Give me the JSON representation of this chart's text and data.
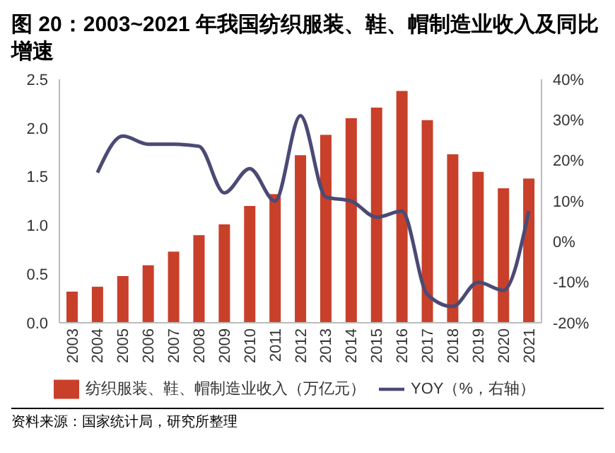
{
  "chart_data": {
    "type": "bar",
    "title": "图 20：2003~2021 年我国纺织服装、鞋、帽制造业收入及同比增速",
    "categories": [
      "2003",
      "2004",
      "2005",
      "2006",
      "2007",
      "2008",
      "2009",
      "2010",
      "2011",
      "2012",
      "2013",
      "2014",
      "2015",
      "2016",
      "2017",
      "2018",
      "2019",
      "2020",
      "2021"
    ],
    "series": [
      {
        "name": "纺织服装、鞋、帽制造业收入（万亿元）",
        "color": "#c8402a",
        "values": [
          0.32,
          0.37,
          0.48,
          0.59,
          0.73,
          0.9,
          1.01,
          1.2,
          1.32,
          1.72,
          1.93,
          2.1,
          2.21,
          2.38,
          2.08,
          1.73,
          1.55,
          1.38,
          1.48
        ]
      },
      {
        "name": "YOY（%，右轴）",
        "type": "line",
        "axis": "y2",
        "color": "#4b4a75",
        "values": [
          null,
          17,
          26,
          24,
          24,
          23.5,
          12,
          18,
          10,
          31,
          11,
          10,
          6,
          7.5,
          -13,
          -16,
          -10,
          -12,
          7.5
        ]
      }
    ],
    "ylim": [
      0,
      2.5
    ],
    "yticks": [
      {
        "value": 0,
        "label": "0.0"
      },
      0.5,
      {
        "value": 1,
        "label": "1.0"
      },
      1.5,
      {
        "value": 2,
        "label": "2.0"
      },
      2.5
    ],
    "y2lim": [
      -20,
      40
    ],
    "y2ticks": [
      {
        "value": -20,
        "label": "-20%"
      },
      {
        "value": -10,
        "label": "-10%"
      },
      {
        "value": 0,
        "label": "0%"
      },
      {
        "value": 10,
        "label": "10%"
      },
      {
        "value": 20,
        "label": "20%"
      },
      {
        "value": 30,
        "label": "30%"
      },
      {
        "value": 40,
        "label": "40%"
      }
    ],
    "legend": "bottom",
    "annotations": [
      "资料来源：国家统计局，研究所整理"
    ]
  }
}
